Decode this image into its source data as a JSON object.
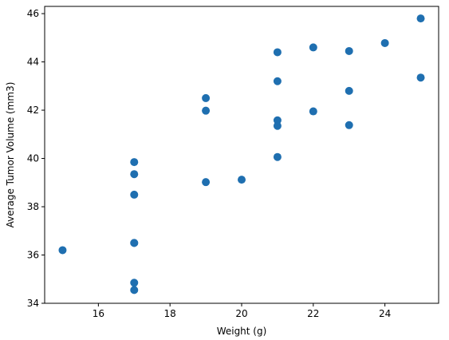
{
  "chart_data": {
    "type": "scatter",
    "title": "",
    "xlabel": "Weight (g)",
    "ylabel": "Average Tumor Volume (mm3)",
    "xlim": [
      14.5,
      25.5
    ],
    "ylim": [
      34,
      46.3
    ],
    "xticks": [
      16,
      18,
      20,
      22,
      24
    ],
    "yticks": [
      34,
      36,
      38,
      40,
      42,
      44,
      46
    ],
    "grid": false,
    "marker_color": "#1f6fb0",
    "points": [
      {
        "x": 15,
        "y": 36.2
      },
      {
        "x": 17,
        "y": 39.85
      },
      {
        "x": 17,
        "y": 39.35
      },
      {
        "x": 17,
        "y": 38.5
      },
      {
        "x": 17,
        "y": 36.5
      },
      {
        "x": 17,
        "y": 36.5
      },
      {
        "x": 17,
        "y": 34.85
      },
      {
        "x": 17,
        "y": 34.55
      },
      {
        "x": 19,
        "y": 42.5
      },
      {
        "x": 19,
        "y": 41.98
      },
      {
        "x": 19,
        "y": 39.02
      },
      {
        "x": 20,
        "y": 39.12
      },
      {
        "x": 21,
        "y": 44.4
      },
      {
        "x": 21,
        "y": 43.2
      },
      {
        "x": 21,
        "y": 41.58
      },
      {
        "x": 21,
        "y": 41.35
      },
      {
        "x": 21,
        "y": 40.06
      },
      {
        "x": 22,
        "y": 44.6
      },
      {
        "x": 22,
        "y": 41.95
      },
      {
        "x": 23,
        "y": 44.45
      },
      {
        "x": 23,
        "y": 42.8
      },
      {
        "x": 23,
        "y": 41.38
      },
      {
        "x": 24,
        "y": 44.78
      },
      {
        "x": 25,
        "y": 45.8
      },
      {
        "x": 25,
        "y": 43.35
      }
    ]
  }
}
